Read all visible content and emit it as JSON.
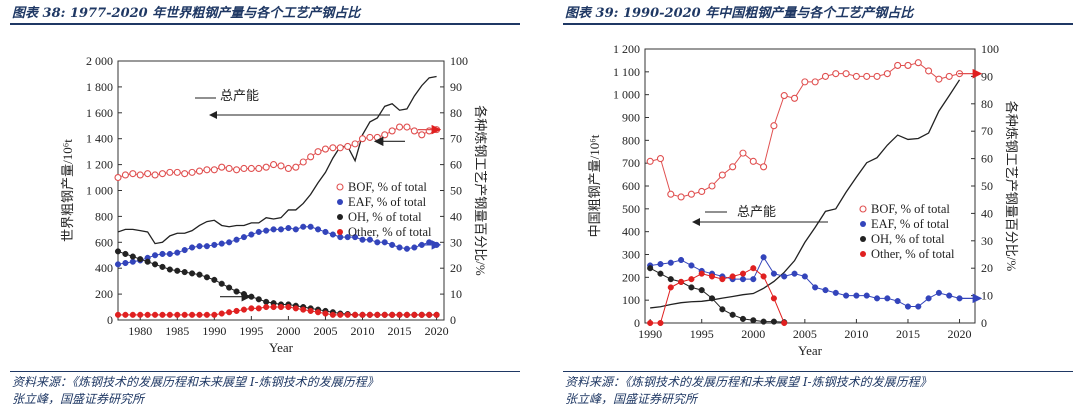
{
  "chart_data": [
    {
      "type": "line",
      "figure_title": "图表 38: 1977-2020 年世界粗钢产量与各个工艺产钢占比",
      "source_line1": "资料来源：《炼钢技术的发展历程和未来展望 I-炼钢技术的发展历程》",
      "source_line2": "张立峰，国盛证券研究所",
      "xlabel": "Year",
      "ylabel_left": "世界粗钢产量/10⁶t",
      "ylabel_right": "各种炼钢工艺产钢量百分比/%",
      "xlim": [
        1977,
        2021
      ],
      "ylim_left": [
        0,
        2000
      ],
      "ylim_right": [
        0,
        100
      ],
      "x_ticks": [
        1980,
        1985,
        1990,
        1995,
        2000,
        2005,
        2010,
        2015,
        2020
      ],
      "y_ticks_left": [
        "0",
        "200",
        "400",
        "600",
        "800",
        "1 000",
        "1 200",
        "1 400",
        "1 600",
        "1 800",
        "2 000"
      ],
      "y_ticks_right": [
        0,
        10,
        20,
        30,
        40,
        50,
        60,
        70,
        80,
        90,
        100
      ],
      "annotation": "总产能",
      "legend": {
        "placement": "center-right",
        "entries": [
          "BOF, % of total",
          "EAF, % of total",
          "OH, % of total",
          "Other, % of total"
        ]
      },
      "series": [
        {
          "name": "总产能",
          "axis": "left",
          "style": "line",
          "color": "#222222",
          "x": [
            1977,
            1978,
            1979,
            1980,
            1981,
            1982,
            1983,
            1984,
            1985,
            1986,
            1987,
            1988,
            1989,
            1990,
            1991,
            1992,
            1993,
            1994,
            1995,
            1996,
            1997,
            1998,
            1999,
            2000,
            2001,
            2002,
            2003,
            2004,
            2005,
            2006,
            2007,
            2008,
            2009,
            2010,
            2011,
            2012,
            2013,
            2014,
            2015,
            2016,
            2017,
            2018,
            2019,
            2020
          ],
          "values": [
            680,
            700,
            700,
            690,
            680,
            590,
            600,
            650,
            670,
            670,
            690,
            730,
            760,
            770,
            730,
            720,
            730,
            730,
            750,
            750,
            790,
            780,
            790,
            850,
            850,
            900,
            970,
            1060,
            1140,
            1250,
            1340,
            1340,
            1230,
            1430,
            1530,
            1560,
            1650,
            1670,
            1620,
            1630,
            1730,
            1810,
            1870,
            1880
          ]
        },
        {
          "name": "BOF, % of total",
          "axis": "right",
          "style": "open-circle",
          "color": "#e05050",
          "x": [
            1977,
            1978,
            1979,
            1980,
            1981,
            1982,
            1983,
            1984,
            1985,
            1986,
            1987,
            1988,
            1989,
            1990,
            1991,
            1992,
            1993,
            1994,
            1995,
            1996,
            1997,
            1998,
            1999,
            2000,
            2001,
            2002,
            2003,
            2004,
            2005,
            2006,
            2007,
            2008,
            2009,
            2010,
            2011,
            2012,
            2013,
            2014,
            2015,
            2016,
            2017,
            2018,
            2019,
            2020
          ],
          "values": [
            55,
            56,
            56.5,
            56,
            56.5,
            56,
            56.5,
            57,
            57,
            56.5,
            57,
            57.5,
            58,
            58,
            59,
            58.5,
            58,
            58.5,
            58.5,
            58.5,
            59,
            60,
            59.5,
            58.5,
            59,
            61,
            63,
            65,
            66,
            66.5,
            66.5,
            67,
            68,
            70,
            70.5,
            70.5,
            71.5,
            73,
            74.5,
            74.5,
            73,
            71.5,
            73,
            73.5
          ]
        },
        {
          "name": "EAF, % of total",
          "axis": "right",
          "style": "filled-circle",
          "color": "#3344bb",
          "x": [
            1977,
            1978,
            1979,
            1980,
            1981,
            1982,
            1983,
            1984,
            1985,
            1986,
            1987,
            1988,
            1989,
            1990,
            1991,
            1992,
            1993,
            1994,
            1995,
            1996,
            1997,
            1998,
            1999,
            2000,
            2001,
            2002,
            2003,
            2004,
            2005,
            2006,
            2007,
            2008,
            2009,
            2010,
            2011,
            2012,
            2013,
            2014,
            2015,
            2016,
            2017,
            2018,
            2019,
            2020
          ],
          "values": [
            21.5,
            22,
            22.5,
            23,
            24,
            25,
            25.5,
            25.5,
            26,
            27,
            28,
            28.5,
            28.5,
            29,
            29.5,
            30,
            31,
            32,
            33,
            34,
            34.5,
            35,
            35,
            35.5,
            35,
            36,
            36,
            35,
            34,
            33,
            32,
            32,
            32,
            31,
            31,
            30,
            30,
            29,
            28,
            27.5,
            28,
            29,
            30,
            29
          ]
        },
        {
          "name": "OH, % of total",
          "axis": "right",
          "style": "filled-circle",
          "color": "#222222",
          "x": [
            1977,
            1978,
            1979,
            1980,
            1981,
            1982,
            1983,
            1984,
            1985,
            1986,
            1987,
            1988,
            1989,
            1990,
            1991,
            1992,
            1993,
            1994,
            1995,
            1996,
            1997,
            1998,
            1999,
            2000,
            2001,
            2002,
            2003,
            2004,
            2005,
            2006,
            2007,
            2008,
            2009,
            2010,
            2011,
            2012,
            2013,
            2014,
            2015,
            2016,
            2017,
            2018,
            2019,
            2020
          ],
          "values": [
            26.5,
            25.5,
            24.5,
            23.5,
            22.5,
            21.5,
            20.5,
            19.5,
            19,
            18.5,
            18,
            17.5,
            16.5,
            15.5,
            14,
            12.5,
            11,
            10,
            9,
            8,
            7,
            6.5,
            6,
            6,
            5.5,
            5,
            4.5,
            4,
            3.5,
            3,
            2.5,
            2.3,
            2,
            2,
            2,
            2,
            2,
            2,
            2,
            2,
            2,
            2,
            2,
            2
          ]
        },
        {
          "name": "Other, % of total",
          "axis": "right",
          "style": "filled-circle",
          "color": "#e02020",
          "x": [
            1977,
            1978,
            1979,
            1980,
            1981,
            1982,
            1983,
            1984,
            1985,
            1986,
            1987,
            1988,
            1989,
            1990,
            1991,
            1992,
            1993,
            1994,
            1995,
            1996,
            1997,
            1998,
            1999,
            2000,
            2001,
            2002,
            2003,
            2004,
            2005,
            2006,
            2007,
            2008,
            2009,
            2010,
            2011,
            2012,
            2013,
            2014,
            2015,
            2016,
            2017,
            2018,
            2019,
            2020
          ],
          "values": [
            2,
            2,
            2,
            2,
            2,
            2,
            2,
            2,
            2,
            2,
            2,
            2,
            2,
            2,
            2.5,
            3,
            3.5,
            4,
            4.5,
            4.5,
            5,
            5,
            5,
            5,
            4.5,
            4,
            3.5,
            3,
            2.5,
            2,
            2,
            2,
            2,
            2,
            2,
            2,
            2,
            2,
            2,
            2,
            2,
            2,
            2,
            2
          ]
        }
      ]
    },
    {
      "type": "line",
      "figure_title": "图表 39: 1990-2020 年中国粗钢产量与各个工艺产钢占比",
      "source_line1": "资料来源：《炼钢技术的发展历程和未来展望 I-炼钢技术的发展历程》",
      "source_line2": "张立峰，国盛证券研究所",
      "xlabel": "Year",
      "ylabel_left": "中国粗钢产量/10⁶t",
      "ylabel_right": "各种炼钢工艺产钢量百分比/%",
      "xlim": [
        1989.5,
        2021.5
      ],
      "ylim_left": [
        0,
        1200
      ],
      "ylim_right": [
        0,
        100
      ],
      "x_ticks": [
        1990,
        1995,
        2000,
        2005,
        2010,
        2015,
        2020
      ],
      "y_ticks_left": [
        "0",
        "100",
        "200",
        "300",
        "400",
        "500",
        "600",
        "700",
        "800",
        "900",
        "1 000",
        "1 100",
        "1 200"
      ],
      "y_ticks_right": [
        0,
        10,
        20,
        30,
        40,
        50,
        60,
        70,
        80,
        90,
        100
      ],
      "annotation": "总产能",
      "legend": {
        "placement": "center-right",
        "entries": [
          "BOF, % of total",
          "EAF, % of total",
          "OH, % of total",
          "Other, % of total"
        ]
      },
      "series": [
        {
          "name": "总产能",
          "axis": "left",
          "style": "line",
          "color": "#222222",
          "x": [
            1990,
            1991,
            1992,
            1993,
            1994,
            1995,
            1996,
            1997,
            1998,
            1999,
            2000,
            2001,
            2002,
            2003,
            2004,
            2005,
            2006,
            2007,
            2008,
            2009,
            2010,
            2011,
            2012,
            2013,
            2014,
            2015,
            2016,
            2017,
            2018,
            2019,
            2020
          ],
          "values": [
            66,
            71,
            81,
            89,
            93,
            95,
            101,
            109,
            116,
            124,
            129,
            152,
            182,
            222,
            273,
            353,
            419,
            489,
            500,
            573,
            639,
            702,
            724,
            779,
            823,
            804,
            808,
            832,
            928,
            996,
            1065
          ]
        },
        {
          "name": "BOF, % of total",
          "axis": "right",
          "style": "open-circle",
          "color": "#e05050",
          "x": [
            1990,
            1991,
            1992,
            1993,
            1994,
            1995,
            1996,
            1997,
            1998,
            1999,
            2000,
            2001,
            2002,
            2003,
            2004,
            2005,
            2006,
            2007,
            2008,
            2009,
            2010,
            2011,
            2012,
            2013,
            2014,
            2015,
            2016,
            2017,
            2018,
            2019,
            2020
          ],
          "values": [
            59,
            60,
            47,
            46,
            47,
            48,
            50,
            54,
            57,
            62,
            59,
            57,
            72,
            83,
            82,
            88,
            88,
            90,
            91,
            91,
            90,
            90,
            90,
            91,
            94,
            94,
            95,
            92,
            89,
            90,
            91
          ]
        },
        {
          "name": "EAF, % of total",
          "axis": "right",
          "style": "filled-circle",
          "color": "#3344bb",
          "x": [
            1990,
            1991,
            1992,
            1993,
            1994,
            1995,
            1996,
            1997,
            1998,
            1999,
            2000,
            2001,
            2002,
            2003,
            2004,
            2005,
            2006,
            2007,
            2008,
            2009,
            2010,
            2011,
            2012,
            2013,
            2014,
            2015,
            2016,
            2017,
            2018,
            2019,
            2020
          ],
          "values": [
            21,
            21.5,
            22,
            23,
            21,
            19,
            18,
            17,
            16,
            16,
            16,
            24,
            18,
            17,
            18,
            17,
            13,
            12,
            11,
            10,
            10,
            10,
            9,
            9,
            8,
            6,
            6,
            9,
            11,
            10,
            9
          ]
        },
        {
          "name": "OH, % of total",
          "axis": "right",
          "style": "filled-circle",
          "color": "#222222",
          "x": [
            1990,
            1991,
            1992,
            1993,
            1994,
            1995,
            1996,
            1997,
            1998,
            1999,
            2000,
            2001,
            2002,
            2003
          ],
          "values": [
            20,
            18,
            16,
            15,
            13,
            12,
            9,
            5,
            3,
            1.5,
            1,
            0.5,
            0.5,
            0.3
          ]
        },
        {
          "name": "Other, % of total",
          "axis": "right",
          "style": "filled-circle",
          "color": "#e02020",
          "x": [
            1990,
            1991,
            1992,
            1993,
            1994,
            1995,
            1996,
            1997,
            1998,
            1999,
            2000,
            2001,
            2002,
            2003
          ],
          "values": [
            0,
            0,
            13,
            15,
            16,
            18,
            17,
            16,
            17,
            18,
            20,
            17,
            9,
            0
          ]
        }
      ]
    }
  ]
}
